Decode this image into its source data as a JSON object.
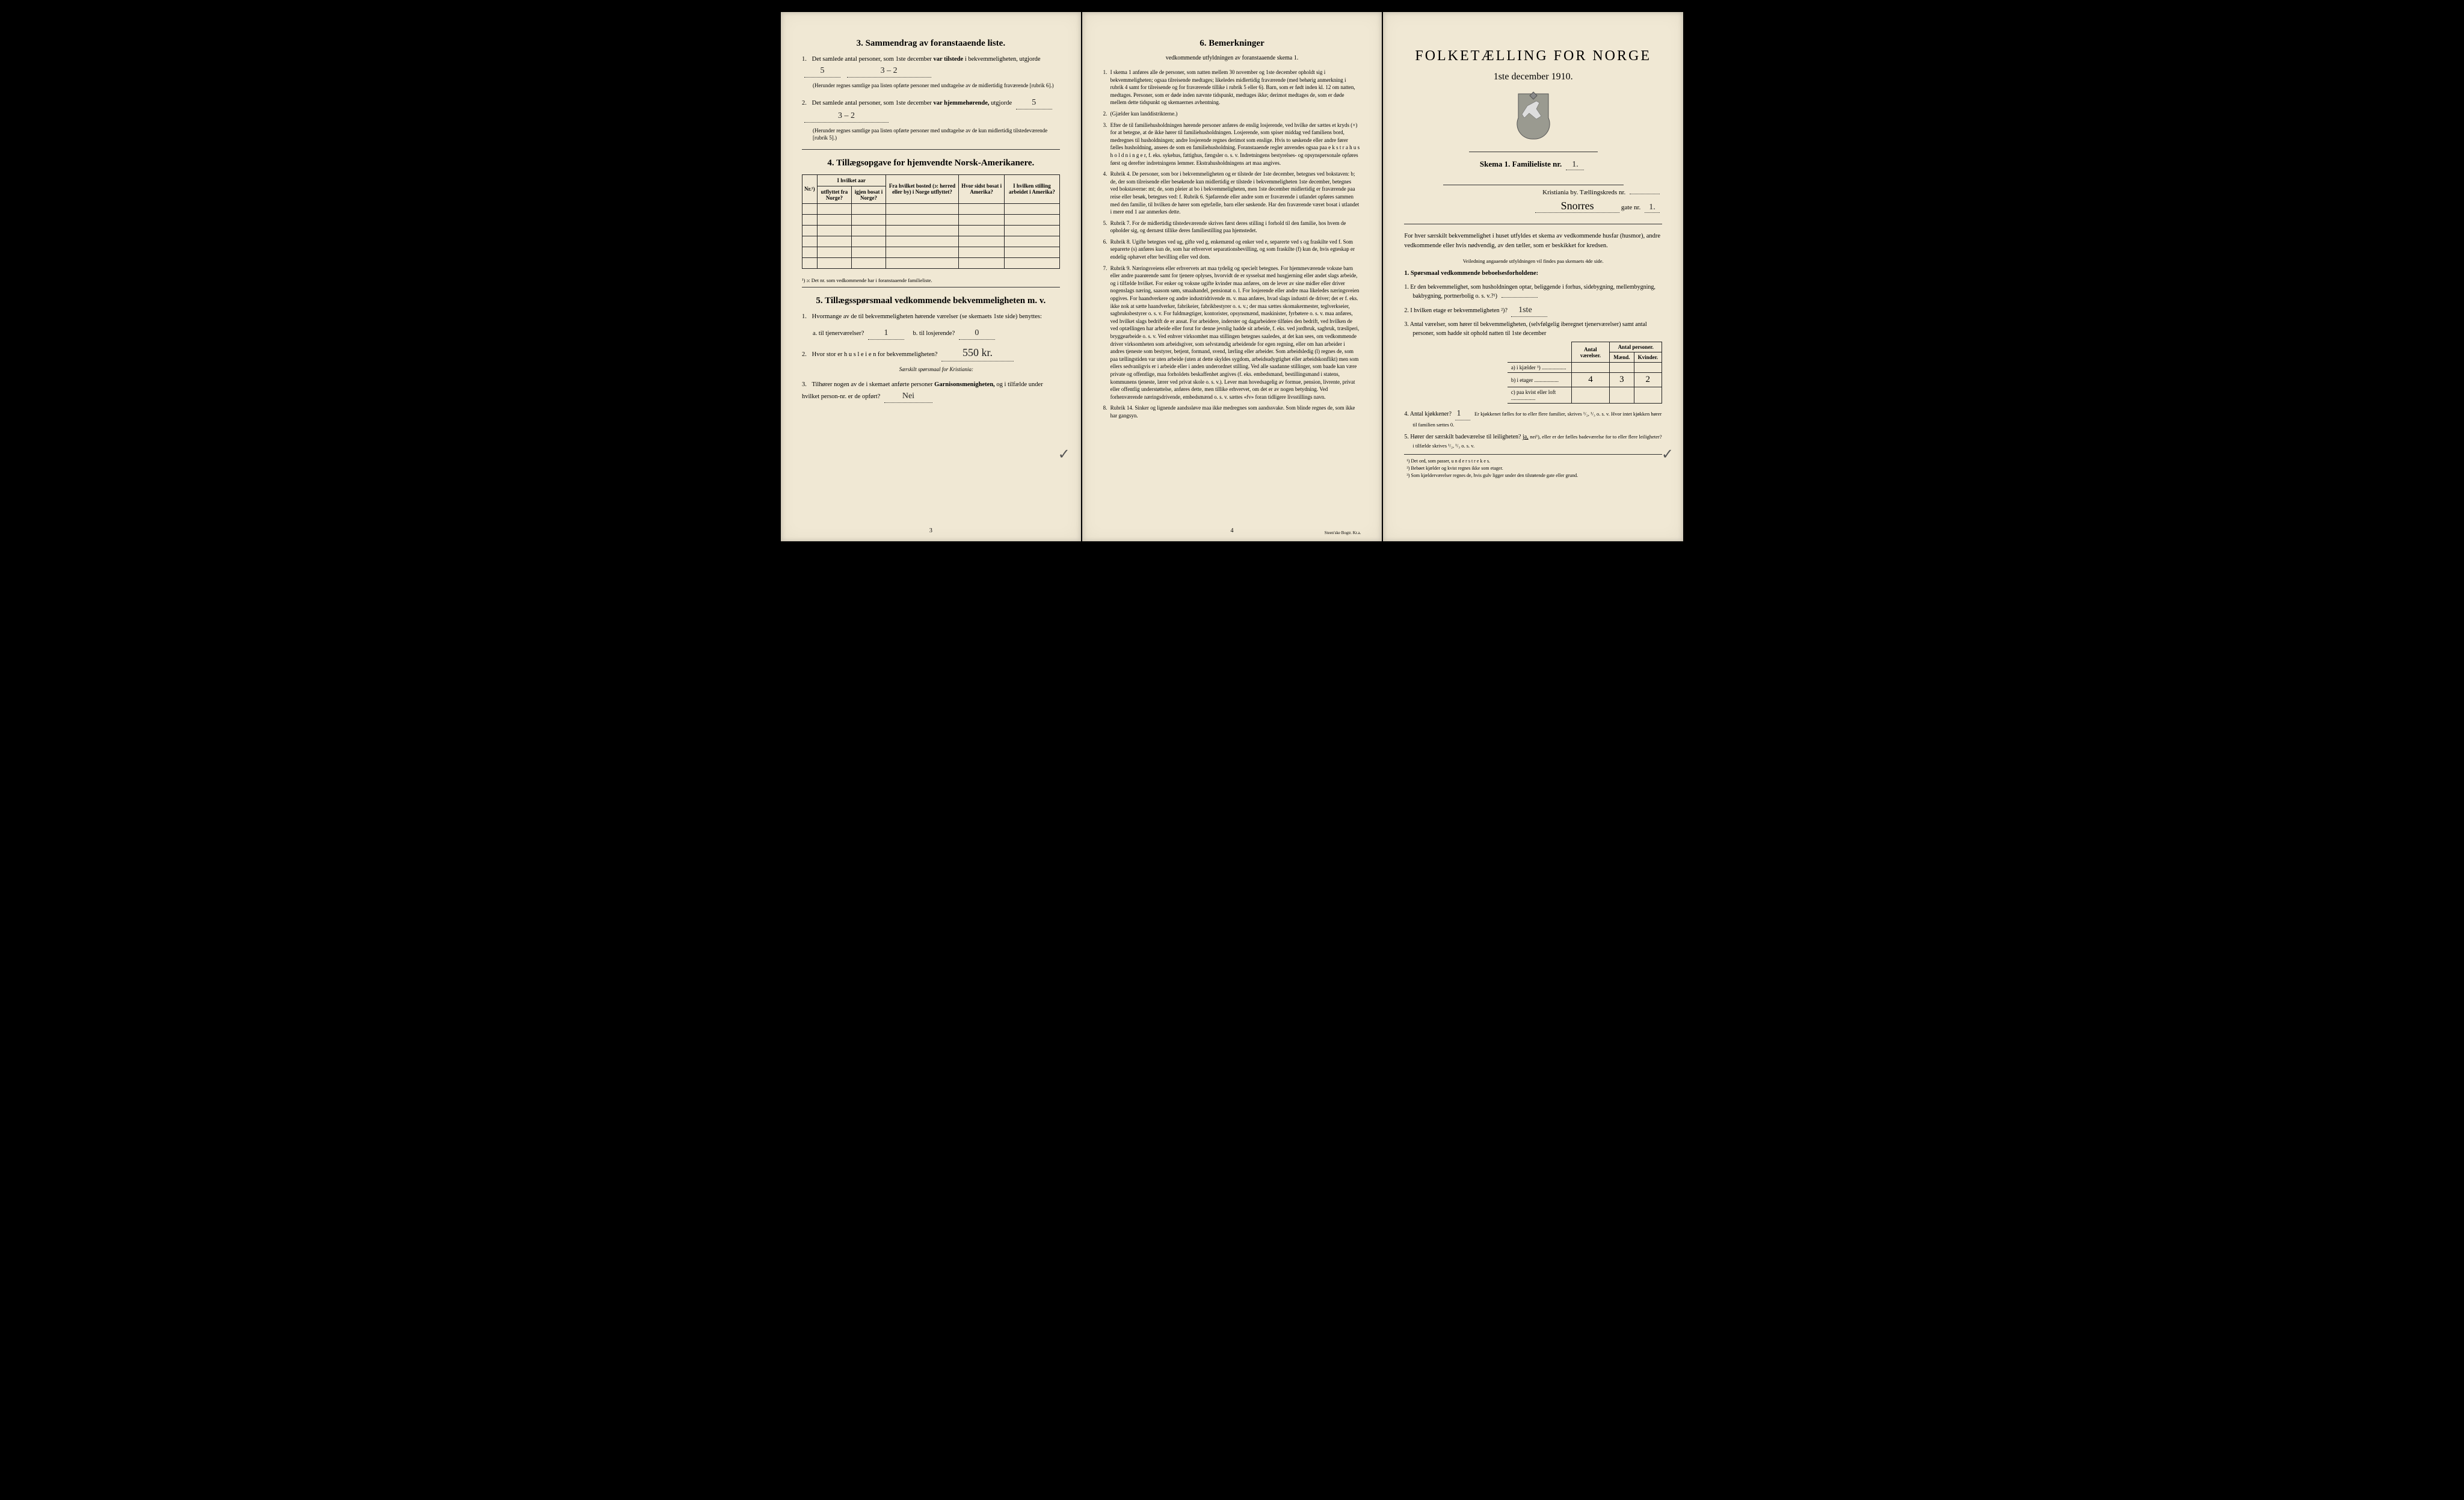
{
  "left": {
    "sec3": {
      "title": "3.   Sammendrag av foranstaaende liste.",
      "q1_a": "Det samlede antal personer, som 1ste december",
      "q1_b": "var tilstede",
      "q1_c": "i bekvemmeligheten, utgjorde",
      "q1_val": "5",
      "q1_val2": "3 – 2",
      "q1_note": "(Herunder regnes samtlige paa listen opførte personer med undtagelse av de midlertidig fraværende [rubrik 6].)",
      "q2_a": "Det samlede antal personer, som 1ste december",
      "q2_b": "var hjemmehørende,",
      "q2_c": "utgjorde",
      "q2_val": "5",
      "q2_val2": "3 – 2",
      "q2_note": "(Herunder regnes samtlige paa listen opførte personer med undtagelse av de kun midlertidig tilstedeværende [rubrik 5].)"
    },
    "sec4": {
      "title": "4.   Tillægsopgave for hjemvendte Norsk-Amerikanere.",
      "headers": {
        "nr": "Nr.¹)",
        "year": "I hvilket aar",
        "ut": "utflyttet fra Norge?",
        "igjen": "igjen bosat i Norge?",
        "bosted": "Fra hvilket bosted (ɔ: herred eller by) i Norge utflyttet?",
        "sidst": "Hvor sidst bosat i Amerika?",
        "stilling": "I hvilken stilling arbeidet i Amerika?"
      },
      "rows": 6,
      "foot": "¹) ɔ: Det nr. som vedkommende har i foranstaaende familieliste."
    },
    "sec5": {
      "title": "5.   Tillægsspørsmaal vedkommende bekvemmeligheten m. v.",
      "q1": "Hvormange av de til bekvemmeligheten hørende værelser (se skemaets 1ste side) benyttes:",
      "q1a_lbl": "a.  til tjenerværelser?",
      "q1a_val": "1",
      "q1b_lbl": "b.  til losjerende?",
      "q1b_val": "0",
      "q2_lbl": "Hvor stor er h u s l e i e n  for bekvemmeligheten?",
      "q2_val": "550 kr.",
      "sub": "Særskilt spørsmaal for Kristiania:",
      "q3_a": "Tilhører nogen av de i skemaet anførte personer",
      "q3_b": "Garnisonsmenigheten,",
      "q3_c": "og i tilfælde under hvilket person-nr. er de opført?",
      "q3_val": "Nei"
    },
    "page": "3"
  },
  "mid": {
    "title": "6.   Bemerkninger",
    "sub": "vedkommende utfyldningen av foranstaaende skema 1.",
    "items": [
      "I skema 1 anføres alle de personer, som natten mellem 30 november og 1ste december opholdt sig i bekvemmeligheten; ogsaa tilreisende medtages; likeledes midlertidig fraværende (med behørig anmerkning i rubrik 4 samt for tilreisende og for fraværende tillike i rubrik 5 eller 6). Barn, som er født inden kl. 12 om natten, medtages. Personer, som er døde inden nævnte tidspunkt, medtages ikke; derimot medtages de, som er døde mellem dette tidspunkt og skemaernes avhentning.",
      "(Gjælder kun landdistrikterne.)",
      "Efter de til familiehusholdningen hørende personer anføres de enslig losjerende, ved hvilke der sættes et kryds (×) for at betegne, at de ikke hører til familiehusholdningen. Losjerende, som spiser middag ved familiens bord, medregnes til husholdningen; andre losjerende regnes derimot som enslige. Hvis to søskende eller andre fører fælles husholdning, ansees de som en familiehusholdning.  Foranstaaende regler anvendes ogsaa paa e k s t r a h u s h o l d n i n g e r, f. eks. sykehus, fattighus, fængsler o. s. v. Indretningens bestyrelses- og opsynspersonale opføres først og derefter indretningens lemmer. Ekstrahusholdningens art maa angives.",
      "Rubrik 4.  De personer, som bor i bekvemmeligheten og er tilstede der 1ste december, betegnes ved bokstaven: b; de, der som tilreisende eller besøkende kun midlertidig er tilstede i bekvemmeligheten 1ste december, betegnes ved bokstaverne: mt; de, som pleier at bo i bekvemmeligheten, men 1ste december midlertidig er fraværende paa reise eller besøk, betegnes ved: f.  Rubrik 6.  Sjøfarende eller andre som er fraværende i utlandet opføres sammen med den familie, til hvilken de hører som egtefælle, barn eller søskende.  Har den fraværende været bosat i utlandet i mere end 1 aar anmerkes dette.",
      "Rubrik 7.  For de midlertidig tilstedeværende skrives først deres stilling i forhold til den familie, hos hvem de opholder sig, og dernæst tillike deres familiestilling paa hjemstedet.",
      "Rubrik 8.  Ugifte betegnes ved ug, gifte ved g, enkemænd og enker ved e, separerte ved s og fraskilte ved f. Som separerte (s) anføres kun de, som har erhvervet separationsbevilling, og som fraskilte (f) kun de, hvis egteskap er endelig ophævet efter bevilling eller ved dom.",
      "Rubrik 9.  Næringsveiens eller erhvervets art maa tydelig og specielt betegnes.  For hjemmeværende voksne barn eller andre paarørende samt for tjenere oplyses, hvorvidt de er sysselsat med husgjerning eller andet slags arbeide, og i tilfælde hvilket. For enker og voksne ugifte kvinder maa anføres, om de lever av sine midler eller driver nogenslags næring, saasom søm, smaahandel, pensionat o. l.  For losjerende eller andre maa likeledes næringsveien opgives.  For haandverkere og andre industridrivende m. v. maa anføres, hvad slags industri de driver; det er f. eks. ikke nok at sætte haandverker, fabrikeier, fabrikbestyrer o. s. v.; der maa sættes skomakermester, teglverkseier, sagbruksbestyrer o. s. v.  For fuldmægtiger, kontorister, opsynsmænd, maskinister, fyrbøtere o. s. v. maa anføres, ved hvilket slags bedrift de er ansat.  For arbeidere, inderster og dagarbeidere tilføies den bedrift, ved hvilken de ved optællingen har arbeide eller forut for denne jevnlig hadde sit arbeide, f. eks. ved jordbruk, sagbruk, træsliperi, bryggearbeide o. s. v.  Ved enhver virksomhet maa stillingen betegnes saaledes, at det kan sees, om vedkommende driver virksomheten som arbeidsgiver, som selvstændig arbeidende for egen regning, eller om han arbeider i andres tjeneste som bestyrer, betjent, formand, svend, lærling eller arbeider.  Som arbeidsledig (l) regnes de, som paa tællingstiden var uten arbeide (uten at dette skyldes sygdom, arbeidsudygtighet eller arbeidskonflikt) men som ellers sedvanligvis er i arbeide eller i anden underordnet stilling.  Ved alle saadanne stillinger, som baade kan være private og offentlige, maa forholdets beskaffenhet angives (f. eks. embedsmand, bestillingsmand i statens, kommunens tjeneste, lærer ved privat skole o. s. v.).  Lever man hovedsagelig av formue, pension, livrente, privat eller offentlig understøttelse, anføres dette, men tillike erhvervet, om det er av nogen betydning.  Ved forhenværende næringsdrivende, embedsmænd o. s. v. sættes «fv» foran tidligere livsstillings navn.",
      "Rubrik 14.  Sinker og lignende aandssløve maa ikke medregnes som aandssvake. Som blinde regnes de, som ikke har gangsyn."
    ],
    "page": "4",
    "printer": "Steen'ske Bogtr.  Kr.a."
  },
  "right": {
    "title": "FOLKETÆLLING FOR NORGE",
    "date": "1ste december 1910.",
    "crest_colors": {
      "fill": "#888a84",
      "stroke": "#444"
    },
    "schema_a": "Skema 1.   Familieliste nr.",
    "schema_val": "1.",
    "kreds_a": "Kristiania by.   Tællingskreds nr.",
    "kreds_val": "",
    "gate_val": "Snorres",
    "gate_lbl": " gate nr. ",
    "gate_nr": "1.",
    "intro": "For hver særskilt bekvemmelighet i huset utfyldes et skema av vedkommende husfar (husmor), andre vedkommende eller hvis nødvendig, av den tæller, som er beskikket for kredsen.",
    "intro_note": "Veiledning angaaende utfyldningen vil findes paa skemaets 4de side.",
    "sec1_title": "1. Spørsmaal vedkommende beboelsesforholdene:",
    "q1": "Er den bekvemmelighet, som husholdningen optar, beliggende i forhus, sidebygning, mellembygning, bakbygning, portnerbolig o. s. v.?¹)",
    "q1_val": "",
    "q2": "I hvilken etage er bekvemmeligheten ²)?",
    "q2_val": "1ste",
    "q3": "Antal værelser, som hører til bekvemmeligheten, (selvfølgelig iberegnet tjenerværelser) samt antal personer, som hadde sit ophold natten til 1ste december",
    "rooms": {
      "h1": "Antal værelser.",
      "h2": "Antal personer.",
      "h2a": "Mænd.",
      "h2b": "Kvinder.",
      "rows": [
        {
          "lbl": "a) i kjælder ³)",
          "v": [
            "",
            "",
            ""
          ]
        },
        {
          "lbl": "b) i etager",
          "v": [
            "4",
            "3",
            "2"
          ]
        },
        {
          "lbl": "c) paa kvist eller loft",
          "v": [
            "",
            "",
            ""
          ]
        }
      ]
    },
    "q4_a": "Antal kjøkkener?",
    "q4_val": "1",
    "q4_b": "Er kjøkkenet fælles for to eller flere familier, skrives ¹/₂, ¹/₃ o. s. v.  Hvor intet kjøkken hører til familien sættes 0.",
    "q5_a": "Hører der særskilt badeværelse til leiligheten?",
    "q5_val": "ja,",
    "q5_b": "nei¹), eller er der fælles badeværelse for to eller flere leiligheter? i tilfælde skrives ¹/₂, ¹/₃ o. s. v.",
    "foots": [
      "¹) Det ord, som passer, u n d e r s t r e k e s.",
      "²) Bebøet kjælder og kvist regnes ikke som etager.",
      "³) Som kjælderværelser regnes de, hvis gulv ligger under den tilstøtende gate eller grund."
    ]
  }
}
